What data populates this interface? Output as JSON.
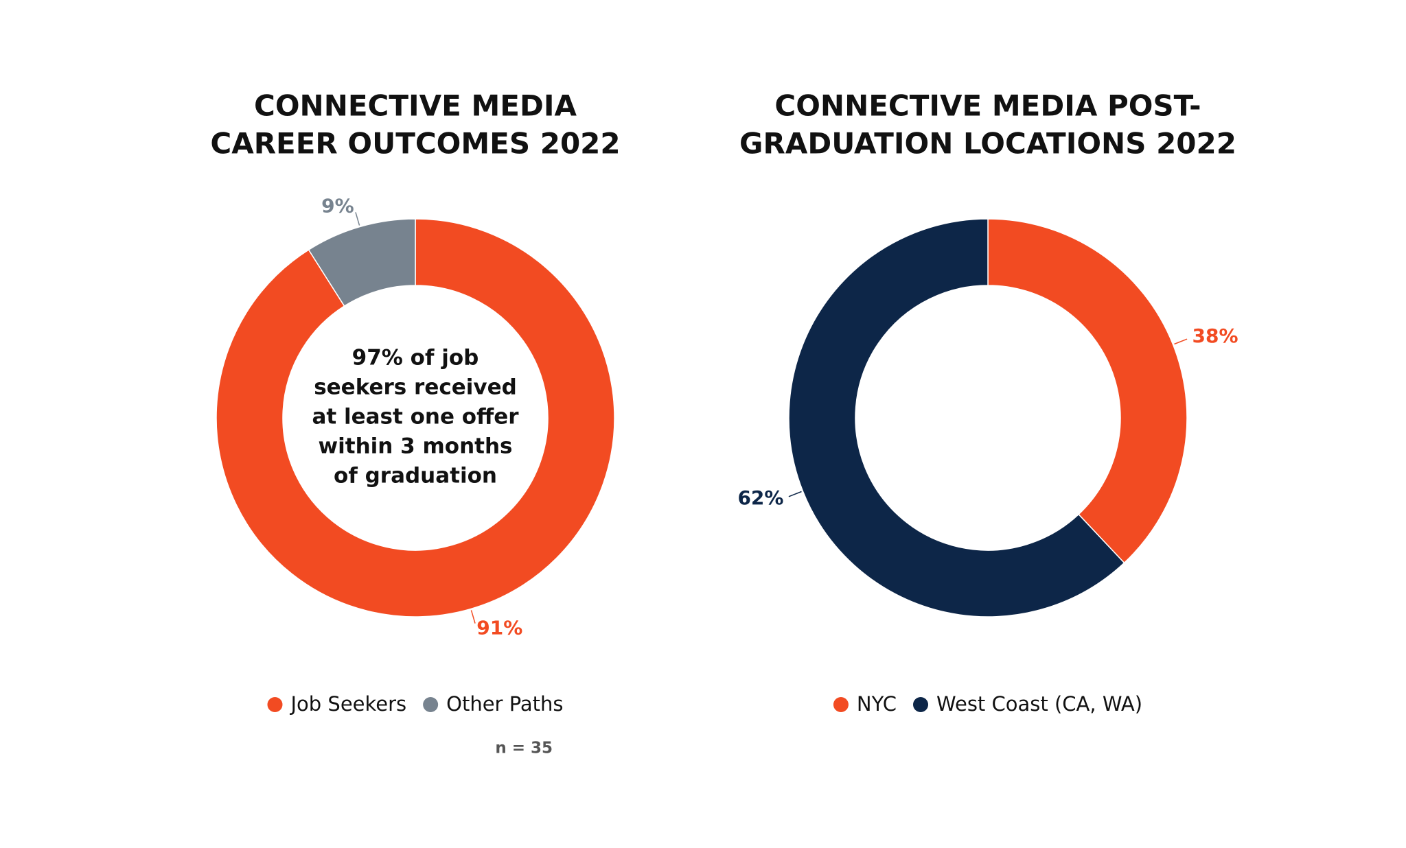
{
  "chart_data": [
    {
      "type": "pie",
      "donut": true,
      "title": [
        "CONNECTIVE MEDIA",
        "CAREER OUTCOMES 2022"
      ],
      "annotation": [
        "97% of job",
        "seekers received",
        "at least one offer",
        "within 3 months",
        "of graduation"
      ],
      "categories": [
        "Job Seekers",
        "Other Paths"
      ],
      "values": [
        91,
        9
      ],
      "value_labels": [
        "91%",
        "9%"
      ],
      "colors": [
        "#f24b22",
        "#77838f"
      ],
      "note": "n = 35"
    },
    {
      "type": "pie",
      "donut": true,
      "title": [
        "CONNECTIVE MEDIA POST-",
        "GRADUATION LOCATIONS 2022"
      ],
      "categories": [
        "NYC",
        "West Coast (CA, WA)"
      ],
      "values": [
        38,
        62
      ],
      "value_labels": [
        "38%",
        "62%"
      ],
      "colors": [
        "#f24b22",
        "#0d2648"
      ]
    }
  ]
}
